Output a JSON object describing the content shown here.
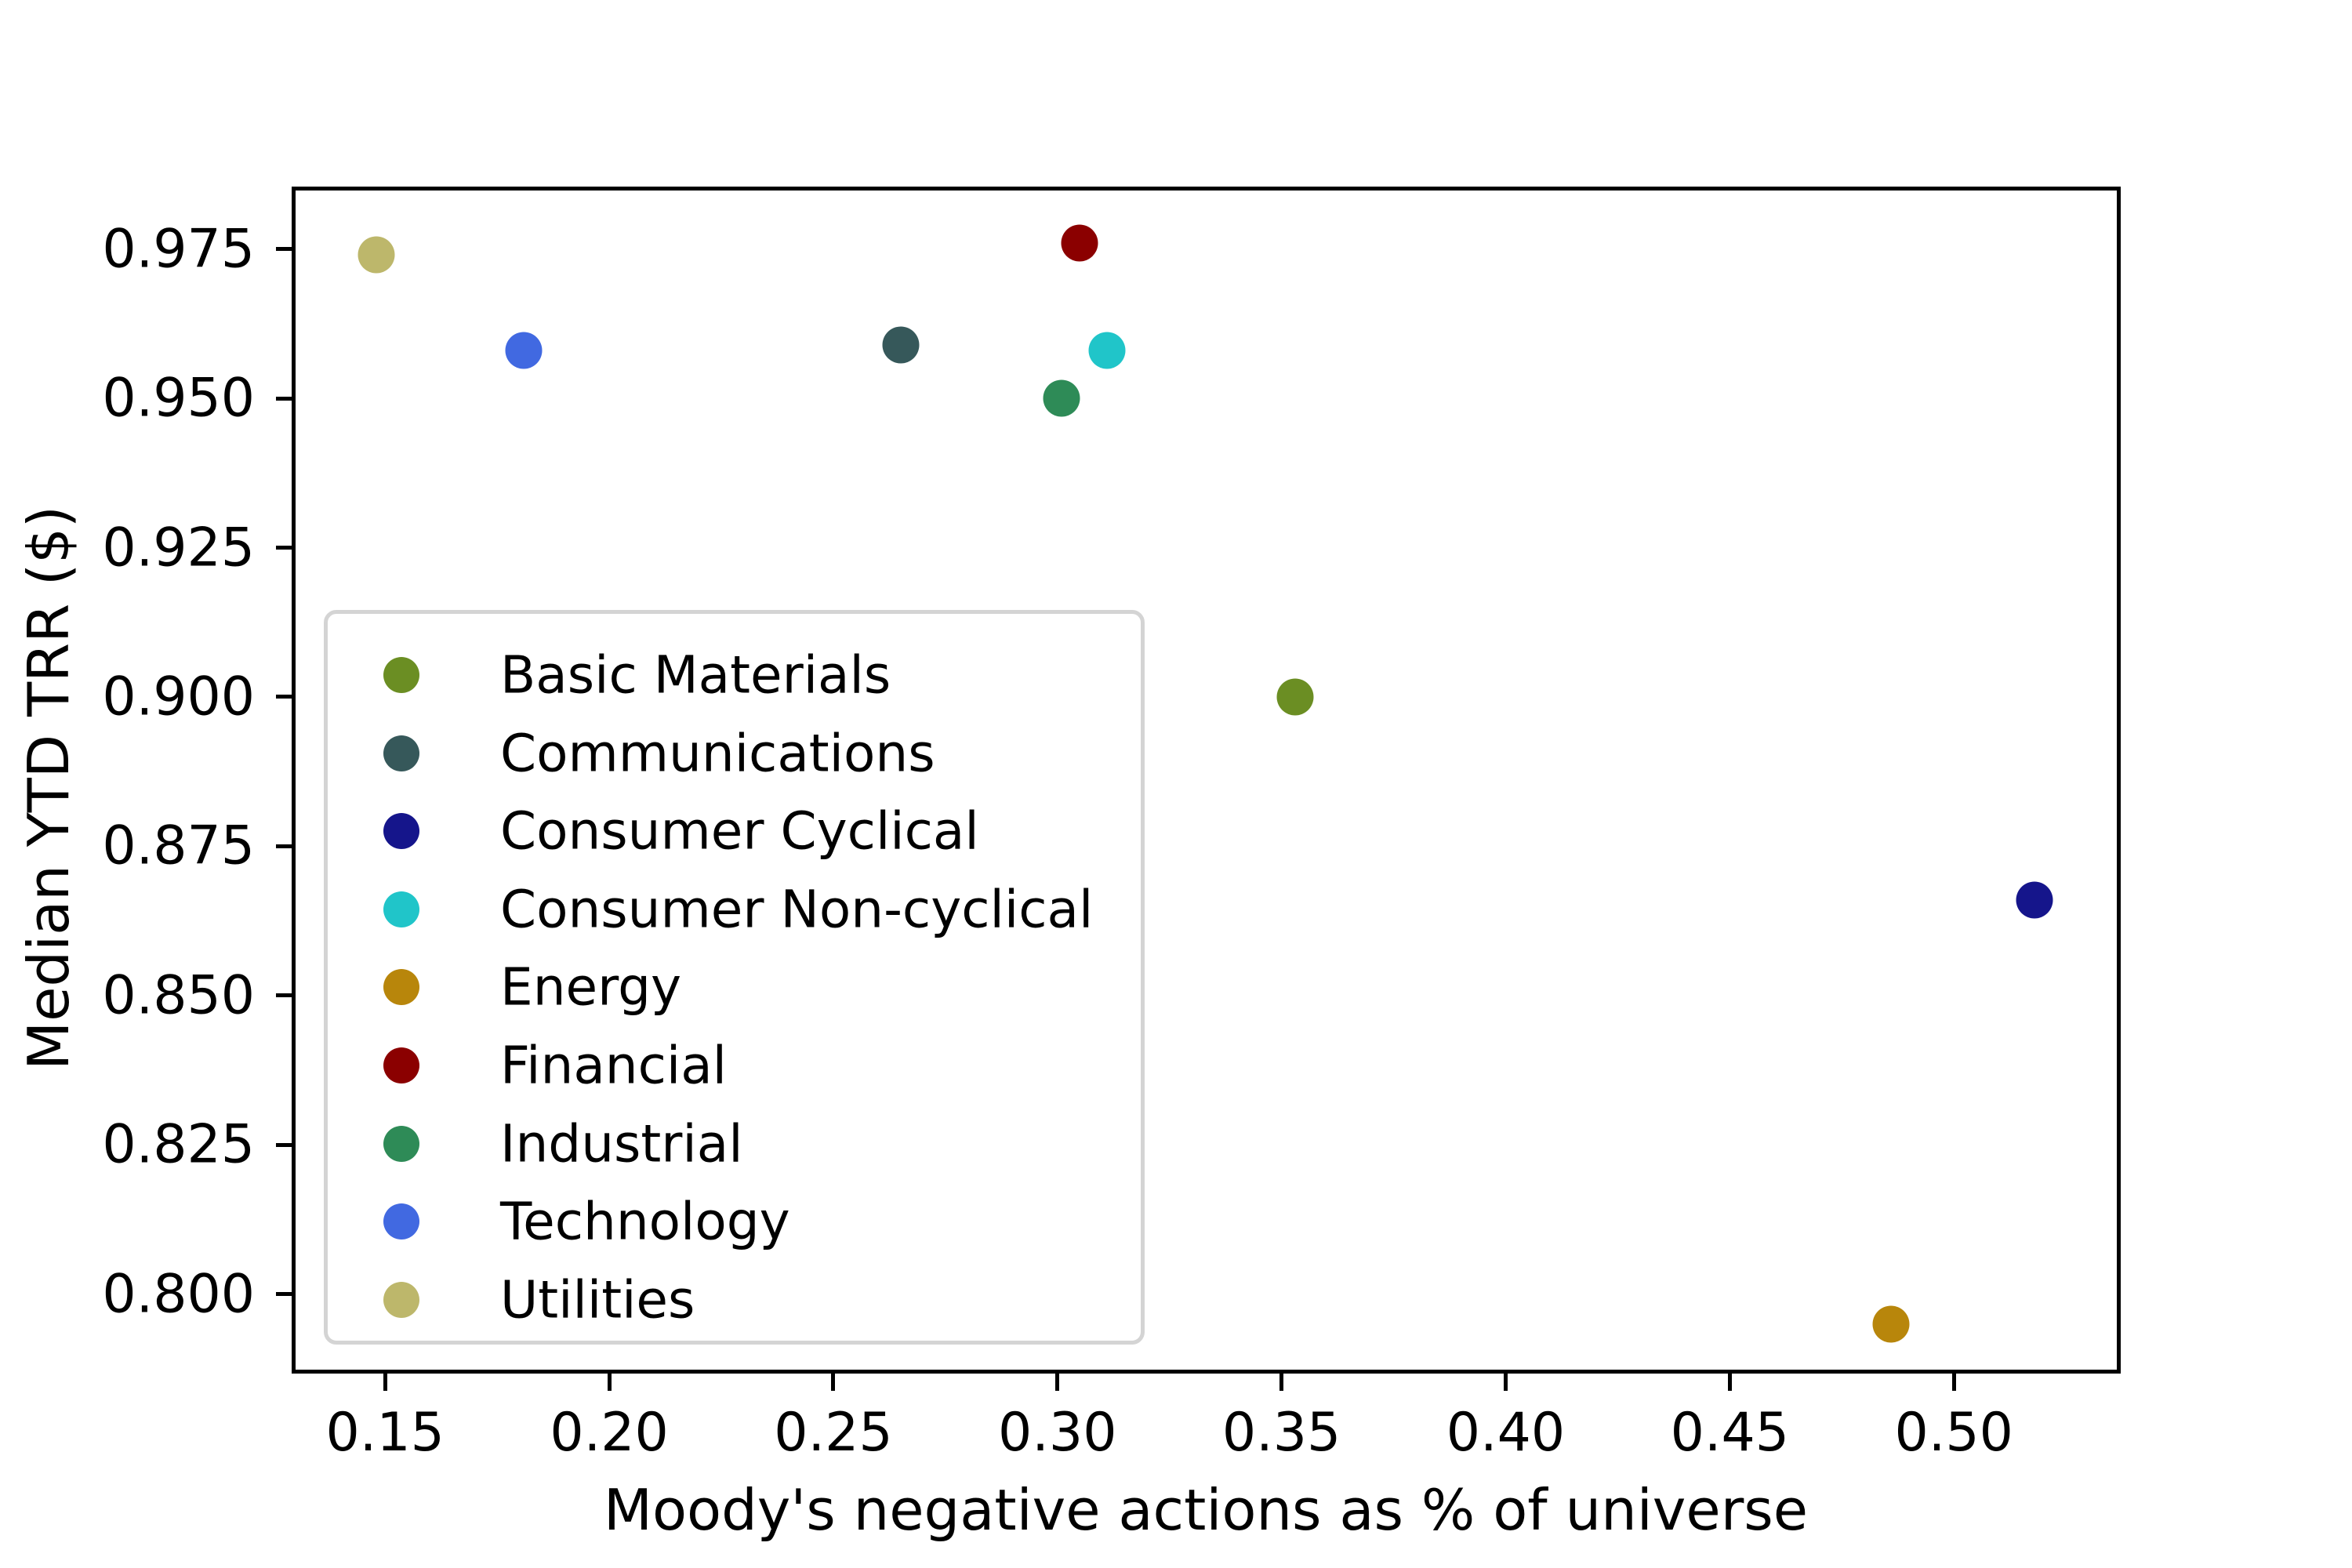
{
  "chart_data": {
    "type": "scatter",
    "title": "",
    "xlabel": "Moody's negative actions as % of universe",
    "ylabel": "Median YTD TRR ($)",
    "xlim": [
      0.1295,
      0.5367
    ],
    "ylim": [
      0.7871,
      0.9852
    ],
    "grid": false,
    "x_ticks": [
      {
        "value": 0.15,
        "label": "0.15"
      },
      {
        "value": 0.2,
        "label": "0.20"
      },
      {
        "value": 0.25,
        "label": "0.25"
      },
      {
        "value": 0.3,
        "label": "0.30"
      },
      {
        "value": 0.35,
        "label": "0.35"
      },
      {
        "value": 0.4,
        "label": "0.40"
      },
      {
        "value": 0.45,
        "label": "0.45"
      },
      {
        "value": 0.5,
        "label": "0.50"
      }
    ],
    "y_ticks": [
      {
        "value": 0.975,
        "label": "0.975"
      },
      {
        "value": 0.95,
        "label": "0.950"
      },
      {
        "value": 0.925,
        "label": "0.925"
      },
      {
        "value": 0.9,
        "label": "0.900"
      },
      {
        "value": 0.875,
        "label": "0.875"
      },
      {
        "value": 0.85,
        "label": "0.850"
      },
      {
        "value": 0.825,
        "label": "0.825"
      },
      {
        "value": 0.8,
        "label": "0.800"
      }
    ],
    "series": [
      {
        "name": "Basic Materials",
        "color": "#6B8E23",
        "x": 0.353,
        "y": 0.9
      },
      {
        "name": "Communications",
        "color": "#36585A",
        "x": 0.265,
        "y": 0.959
      },
      {
        "name": "Consumer Cyclical",
        "color": "#15158B",
        "x": 0.518,
        "y": 0.866
      },
      {
        "name": "Consumer Non-cyclical",
        "color": "#20C5C9",
        "x": 0.311,
        "y": 0.958
      },
      {
        "name": "Energy",
        "color": "#B8860B",
        "x": 0.486,
        "y": 0.795
      },
      {
        "name": "Financial",
        "color": "#8B0000",
        "x": 0.305,
        "y": 0.976
      },
      {
        "name": "Industrial",
        "color": "#2E8B57",
        "x": 0.301,
        "y": 0.95
      },
      {
        "name": "Technology",
        "color": "#4169E1",
        "x": 0.181,
        "y": 0.958
      },
      {
        "name": "Utilities",
        "color": "#BDB76B",
        "x": 0.148,
        "y": 0.974
      }
    ],
    "legend": {
      "position": "lower-left-inside",
      "border_color": "#d4d4d4",
      "background": "#ffffff"
    }
  }
}
